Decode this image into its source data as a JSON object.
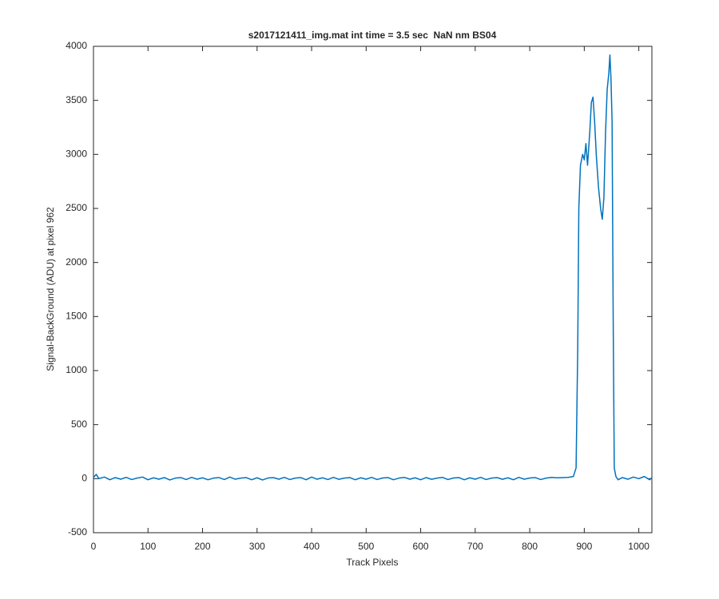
{
  "chart_data": {
    "type": "line",
    "title": "s2017121411_img.mat int time = 3.5 sec  NaN nm BS04",
    "xlabel": "Track Pixels",
    "ylabel": "Signal-BackGround (ADU) at pixel 962",
    "xlim": [
      0,
      1024
    ],
    "ylim": [
      -500,
      4000
    ],
    "xticks": [
      0,
      100,
      200,
      300,
      400,
      500,
      600,
      700,
      800,
      900,
      1000
    ],
    "yticks": [
      -500,
      0,
      500,
      1000,
      1500,
      2000,
      2500,
      3000,
      3500,
      4000
    ],
    "grid": false,
    "series": [
      {
        "name": "signal",
        "color": "#0072bd",
        "x": [
          0,
          5,
          10,
          20,
          30,
          40,
          50,
          60,
          70,
          80,
          90,
          100,
          110,
          120,
          130,
          140,
          150,
          160,
          170,
          180,
          190,
          200,
          210,
          220,
          230,
          240,
          250,
          260,
          270,
          280,
          290,
          300,
          310,
          320,
          330,
          340,
          350,
          360,
          370,
          380,
          390,
          400,
          410,
          420,
          430,
          440,
          450,
          460,
          470,
          480,
          490,
          500,
          510,
          520,
          530,
          540,
          550,
          560,
          570,
          580,
          590,
          600,
          610,
          620,
          630,
          640,
          650,
          660,
          670,
          680,
          690,
          700,
          710,
          720,
          730,
          740,
          750,
          760,
          770,
          780,
          790,
          800,
          810,
          820,
          830,
          840,
          850,
          860,
          870,
          880,
          885,
          888,
          890,
          893,
          897,
          900,
          903,
          906,
          910,
          913,
          916,
          919,
          922,
          926,
          930,
          933,
          936,
          939,
          942,
          945,
          947,
          949,
          951,
          953,
          955,
          958,
          962,
          970,
          980,
          990,
          1000,
          1010,
          1020,
          1024
        ],
        "values": [
          10,
          40,
          0,
          15,
          -10,
          10,
          -5,
          12,
          -8,
          5,
          15,
          -10,
          8,
          -5,
          10,
          -12,
          5,
          10,
          -8,
          12,
          -5,
          8,
          -10,
          5,
          10,
          -8,
          15,
          -5,
          5,
          10,
          -10,
          8,
          -12,
          6,
          10,
          -5,
          12,
          -8,
          5,
          10,
          -10,
          15,
          -5,
          8,
          -8,
          12,
          -6,
          5,
          10,
          -10,
          8,
          -5,
          12,
          -8,
          6,
          10,
          -10,
          5,
          12,
          -5,
          8,
          -10,
          10,
          -6,
          5,
          12,
          -8,
          6,
          10,
          -10,
          8,
          -5,
          12,
          -8,
          5,
          10,
          -6,
          8,
          -10,
          12,
          -5,
          6,
          10,
          -8,
          5,
          12,
          8,
          10,
          12,
          20,
          100,
          1200,
          2500,
          2900,
          3000,
          2950,
          3100,
          2900,
          3200,
          3480,
          3530,
          3300,
          3000,
          2700,
          2500,
          2400,
          2600,
          3200,
          3600,
          3750,
          3920,
          3700,
          3300,
          1500,
          100,
          20,
          -10,
          10,
          -5,
          15,
          0,
          20,
          -10,
          10
        ]
      }
    ]
  }
}
